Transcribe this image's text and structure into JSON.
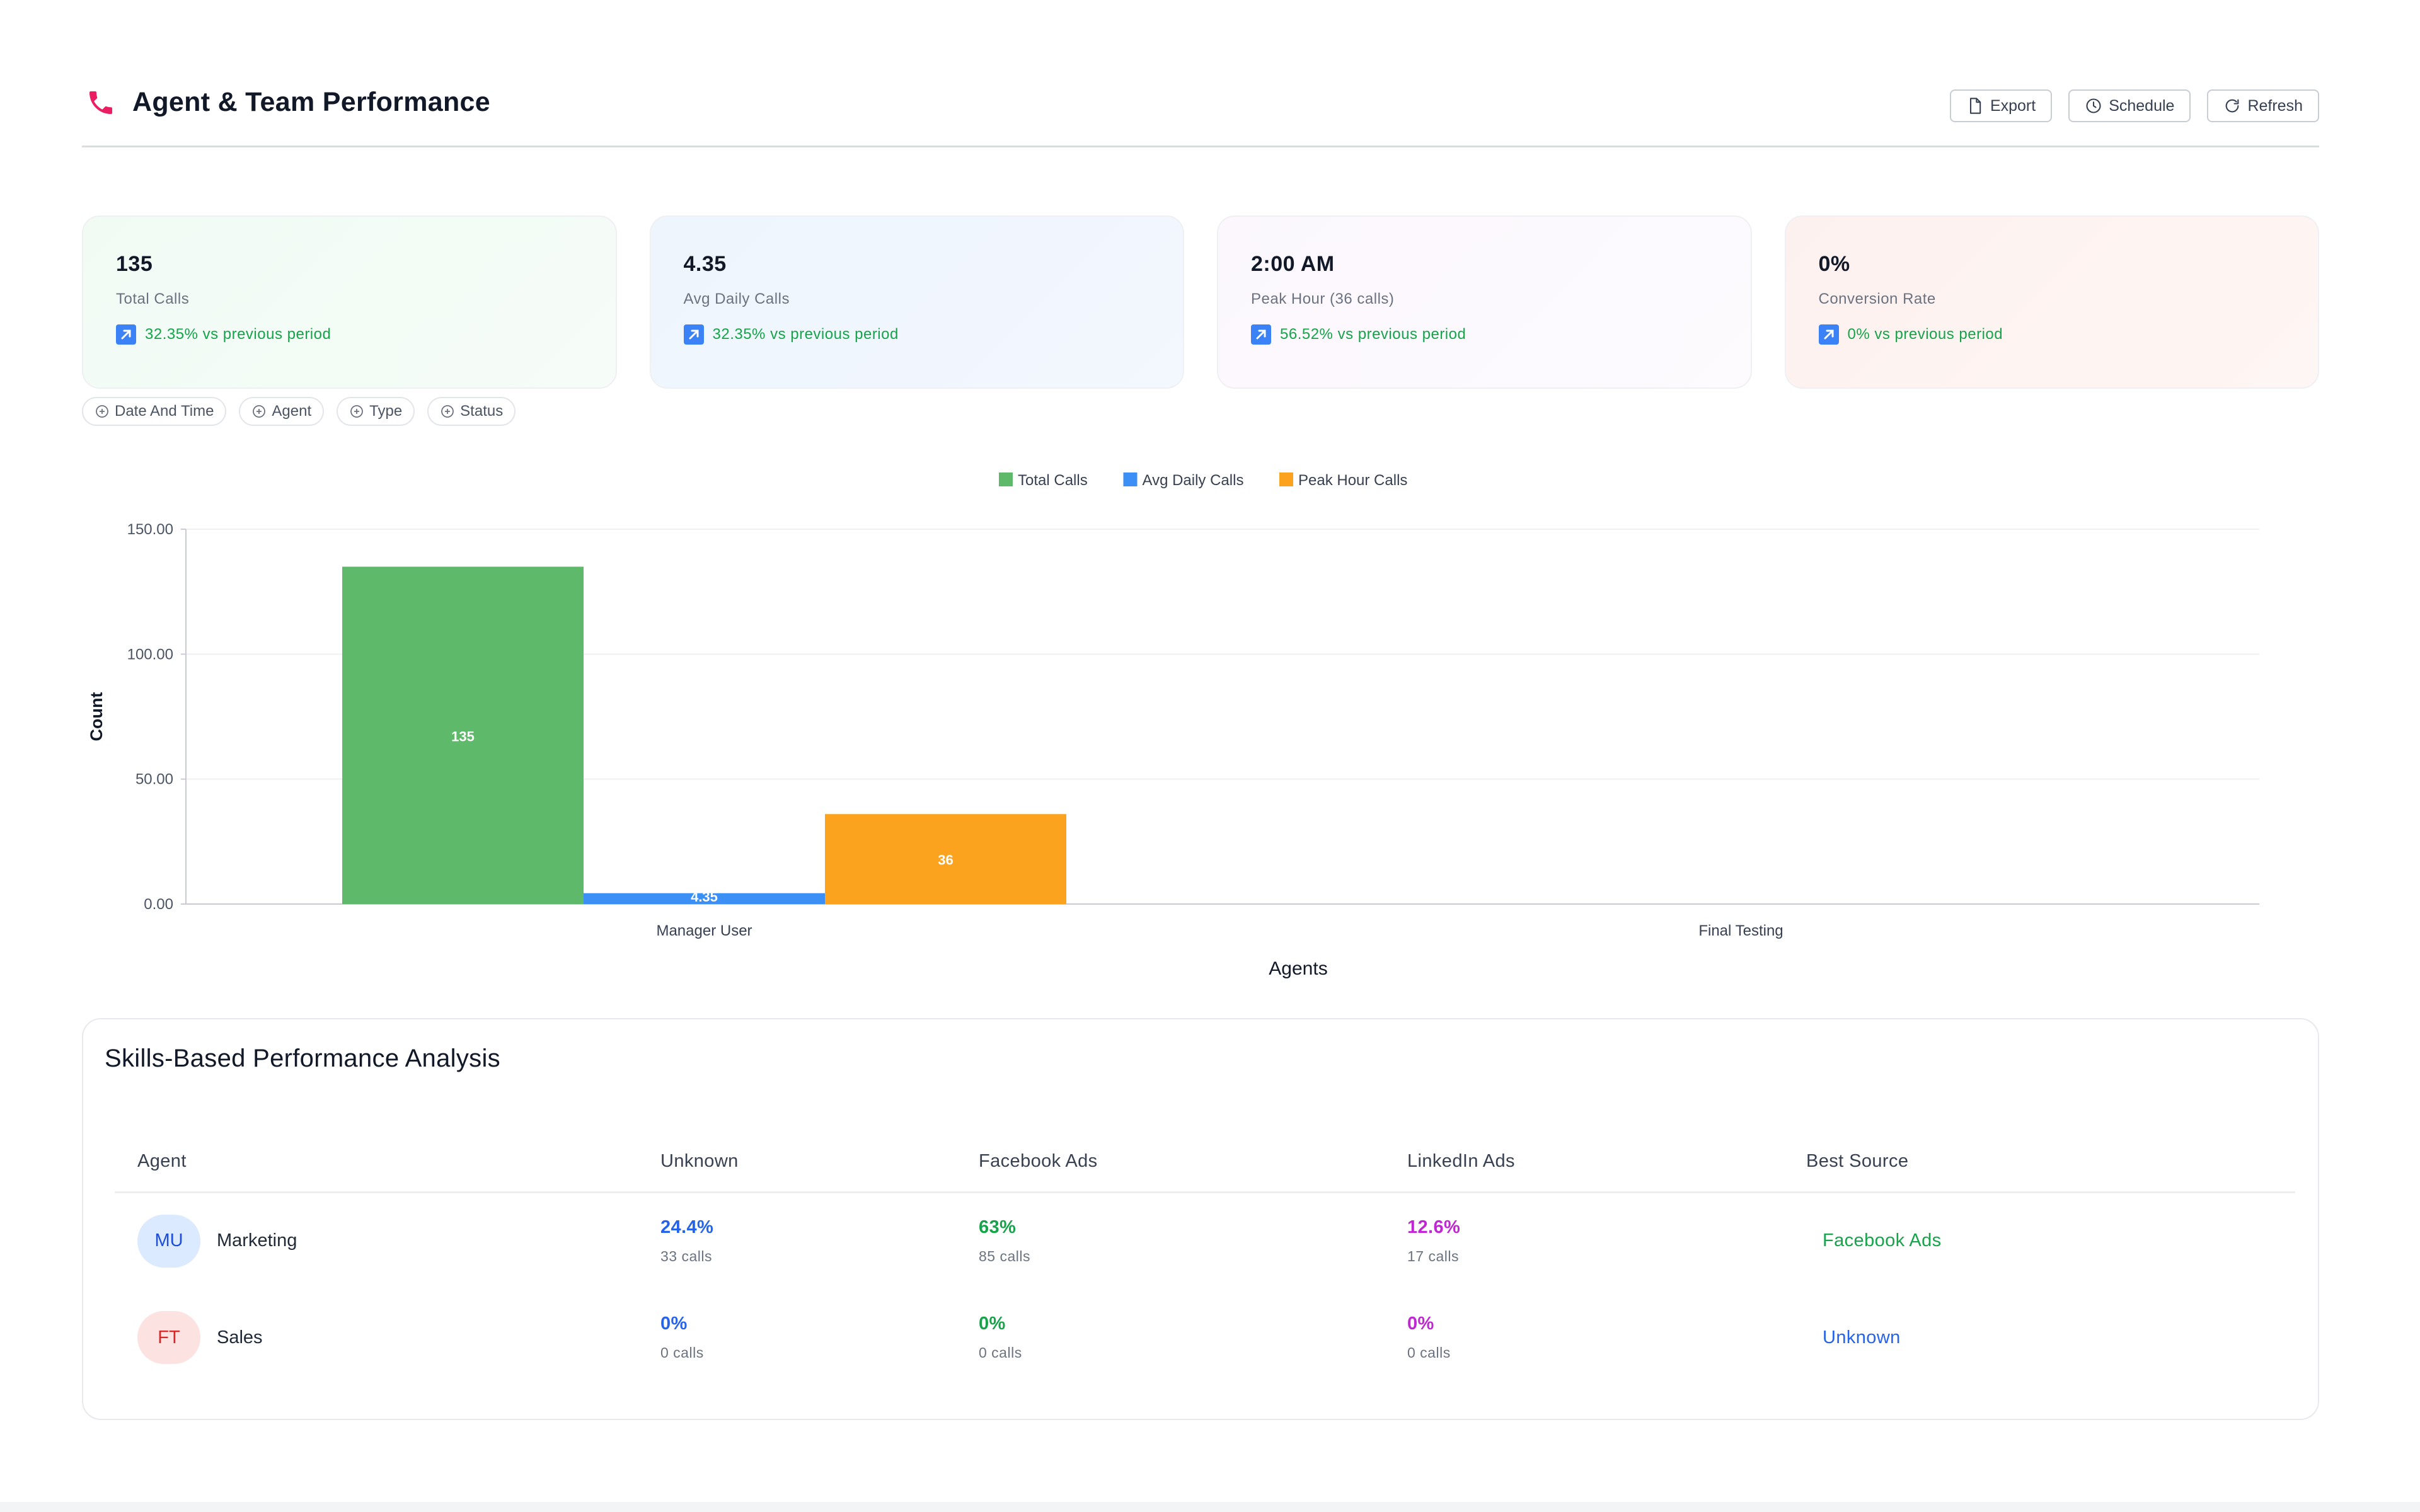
{
  "header": {
    "title": "Agent & Team Performance",
    "actions": {
      "export": "Export",
      "schedule": "Schedule",
      "refresh": "Refresh"
    }
  },
  "cards": [
    {
      "value": "135",
      "label": "Total Calls",
      "trend": "32.35% vs previous period"
    },
    {
      "value": "4.35",
      "label": "Avg Daily Calls",
      "trend": "32.35% vs previous period"
    },
    {
      "value": "2:00 AM",
      "label": "Peak Hour (36 calls)",
      "trend": "56.52% vs previous period"
    },
    {
      "value": "0%",
      "label": "Conversion Rate",
      "trend": "0% vs previous period"
    }
  ],
  "filters": [
    "Date And Time",
    "Agent",
    "Type",
    "Status"
  ],
  "chart_data": {
    "type": "bar",
    "categories": [
      "Manager User",
      "Final Testing"
    ],
    "series": [
      {
        "name": "Total Calls",
        "values": [
          135,
          0
        ],
        "color": "#5fb96b"
      },
      {
        "name": "Avg Daily Calls",
        "values": [
          4.35,
          0
        ],
        "color": "#3b8ff5"
      },
      {
        "name": "Peak Hour Calls",
        "values": [
          36,
          0
        ],
        "color": "#fba31e"
      }
    ],
    "data_labels": [
      "135",
      "4.35",
      "36"
    ],
    "xlabel": "Agents",
    "ylabel": "Count",
    "ylim": [
      0,
      150
    ],
    "yticks": [
      "0.00",
      "50.00",
      "100.00",
      "150.00"
    ],
    "grid": true,
    "legend": "top-center"
  },
  "skills": {
    "title": "Skills-Based Performance Analysis",
    "columns": [
      "Agent",
      "Unknown",
      "Facebook Ads",
      "LinkedIn Ads",
      "Best Source"
    ],
    "rows": [
      {
        "initials": "MU",
        "name": "Marketing",
        "unknown": {
          "pct": "24.4%",
          "calls": "33 calls"
        },
        "facebook": {
          "pct": "63%",
          "calls": "85 calls"
        },
        "linkedin": {
          "pct": "12.6%",
          "calls": "17 calls"
        },
        "best": "Facebook Ads"
      },
      {
        "initials": "FT",
        "name": "Sales",
        "unknown": {
          "pct": "0%",
          "calls": "0 calls"
        },
        "facebook": {
          "pct": "0%",
          "calls": "0 calls"
        },
        "linkedin": {
          "pct": "0%",
          "calls": "0 calls"
        },
        "best": "Unknown"
      }
    ]
  },
  "colors": {
    "accent_pink": "#e91e63",
    "trend_green": "#16a34a",
    "trend_icon_blue": "#3b82f6"
  }
}
